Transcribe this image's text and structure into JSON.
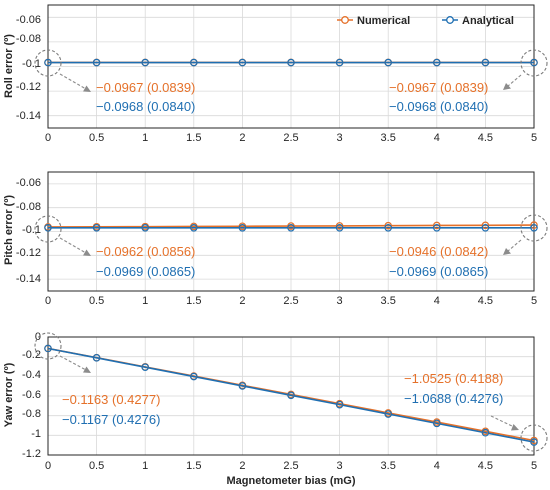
{
  "colors": {
    "numerical": "#e5712a",
    "analytical": "#1f6fb2",
    "grid": "#d9d9d9",
    "axis": "#262626",
    "arrow": "#8c8c8c",
    "circle": "#7a7a7a"
  },
  "chart_data": [
    {
      "type": "line",
      "ylabel": "Roll error (º)",
      "xlabel": "",
      "xlim": [
        0,
        5
      ],
      "ylim": [
        -0.15,
        -0.05
      ],
      "x": [
        0,
        0.5,
        1,
        1.5,
        2,
        2.5,
        3,
        3.5,
        4,
        4.5,
        5
      ],
      "x_ticks": [
        "0",
        "0.5",
        "1",
        "1.5",
        "2",
        "2.5",
        "3",
        "3.5",
        "4",
        "4.5",
        "5"
      ],
      "y_ticks": [
        "-0.06",
        "-0.08",
        "-0.1",
        "-0.12",
        "-0.14"
      ],
      "grid": true,
      "legend": {
        "placement": "top-right",
        "entries": [
          "Numerical",
          "Analytical"
        ]
      },
      "series": [
        {
          "name": "Numerical",
          "color": "#e5712a",
          "values": [
            -0.0967,
            -0.0967,
            -0.0967,
            -0.0967,
            -0.0967,
            -0.0967,
            -0.0967,
            -0.0967,
            -0.0967,
            -0.0967,
            -0.0967
          ]
        },
        {
          "name": "Analytical",
          "color": "#1f6fb2",
          "values": [
            -0.0968,
            -0.0968,
            -0.0968,
            -0.0968,
            -0.0968,
            -0.0968,
            -0.0968,
            -0.0968,
            -0.0968,
            -0.0968,
            -0.0968
          ]
        }
      ],
      "annotations": [
        {
          "at": "left",
          "numerical": "−0.0967 (0.0839)",
          "analytical": "−0.0968 (0.0840)"
        },
        {
          "at": "right",
          "numerical": "−0.0967 (0.0839)",
          "analytical": "−0.0968 (0.0840)"
        }
      ]
    },
    {
      "type": "line",
      "ylabel": "Pitch error (º)",
      "xlabel": "",
      "xlim": [
        0,
        5
      ],
      "ylim": [
        -0.15,
        -0.05
      ],
      "x": [
        0,
        0.5,
        1,
        1.5,
        2,
        2.5,
        3,
        3.5,
        4,
        4.5,
        5
      ],
      "x_ticks": [
        "0",
        "0.5",
        "1",
        "1.5",
        "2",
        "2.5",
        "3",
        "3.5",
        "4",
        "4.5",
        "5"
      ],
      "y_ticks": [
        "-0.06",
        "-0.08",
        "-0.1",
        "-0.12",
        "-0.14"
      ],
      "grid": true,
      "series": [
        {
          "name": "Numerical",
          "color": "#e5712a",
          "values": [
            -0.0962,
            -0.096,
            -0.0959,
            -0.0957,
            -0.0956,
            -0.0954,
            -0.0953,
            -0.0951,
            -0.0949,
            -0.0948,
            -0.0946
          ]
        },
        {
          "name": "Analytical",
          "color": "#1f6fb2",
          "values": [
            -0.0969,
            -0.0969,
            -0.0969,
            -0.0969,
            -0.0969,
            -0.0969,
            -0.0969,
            -0.0969,
            -0.0969,
            -0.0969,
            -0.0969
          ]
        }
      ],
      "annotations": [
        {
          "at": "left",
          "numerical": "−0.0962 (0.0856)",
          "analytical": "−0.0969 (0.0865)"
        },
        {
          "at": "right",
          "numerical": "−0.0946 (0.0842)",
          "analytical": "−0.0969 (0.0865)"
        }
      ]
    },
    {
      "type": "line",
      "ylabel": "Yaw error (º)",
      "xlabel": "Magnetometer bias (mG)",
      "xlim": [
        0,
        5
      ],
      "ylim": [
        -1.2,
        0
      ],
      "x": [
        0,
        0.5,
        1,
        1.5,
        2,
        2.5,
        3,
        3.5,
        4,
        4.5,
        5
      ],
      "x_ticks": [
        "0",
        "0.5",
        "1",
        "1.5",
        "2",
        "2.5",
        "3",
        "3.5",
        "4",
        "4.5",
        "5"
      ],
      "y_ticks": [
        "0",
        "-0.2",
        "-0.4",
        "-0.6",
        "-0.8",
        "-1",
        "-1.2"
      ],
      "grid": true,
      "series": [
        {
          "name": "Numerical",
          "color": "#e5712a",
          "values": [
            -0.1163,
            -0.2099,
            -0.3036,
            -0.3972,
            -0.4908,
            -0.5844,
            -0.6781,
            -0.7717,
            -0.8653,
            -0.9589,
            -1.0525
          ]
        },
        {
          "name": "Analytical",
          "color": "#1f6fb2",
          "values": [
            -0.1167,
            -0.2119,
            -0.3071,
            -0.4023,
            -0.4975,
            -0.5928,
            -0.688,
            -0.7832,
            -0.8784,
            -0.9736,
            -1.0688
          ]
        }
      ],
      "annotations": [
        {
          "at": "left",
          "numerical": "−0.1163 (0.4277)",
          "analytical": "−0.1167 (0.4276)"
        },
        {
          "at": "right",
          "numerical": "−1.0525 (0.4188)",
          "analytical": "−1.0688 (0.4276)"
        }
      ]
    }
  ]
}
